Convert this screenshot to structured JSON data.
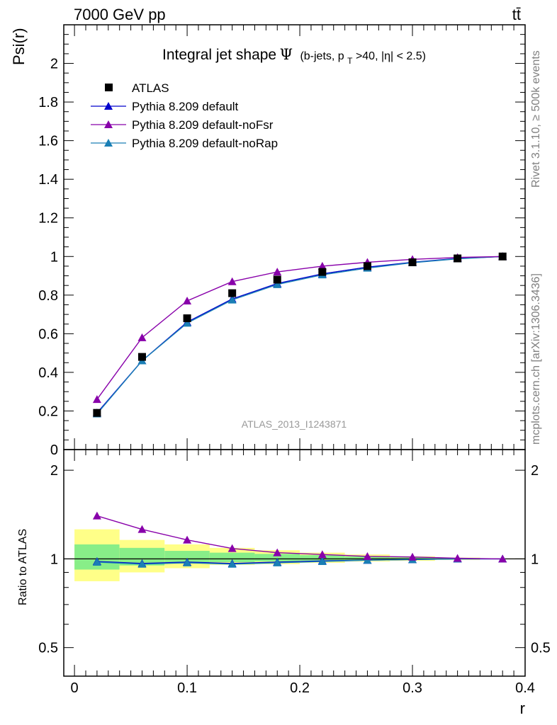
{
  "header": {
    "energy_label": "7000 GeV pp",
    "process_label": "tt̄"
  },
  "side_labels": {
    "rivet": "Rivet 3.1.10, ≥ 500k events",
    "mcplots": "mcplots.cern.ch [arXiv:1306.3436]"
  },
  "watermark": "ATLAS_2013_I1243871",
  "chart_data": [
    {
      "type": "line",
      "title_main": "Integral jet shape",
      "title_psi": "Ψ",
      "title_cut_a": "(b-jets, p",
      "title_cut_sub": "T",
      "title_cut_b": ">40, |η| < 2.5)",
      "xlabel": "r",
      "ylabel": "Psi(r)",
      "xlim": [
        -0.0095,
        0.4
      ],
      "ylim": [
        0,
        2.2
      ],
      "x_ticks": [
        "0",
        "0.1",
        "0.2",
        "0.3",
        "0.4"
      ],
      "y_ticks": [
        "0.2",
        "0.4",
        "0.6",
        "0.8",
        "1",
        "1.2",
        "1.4",
        "1.6",
        "1.8",
        "2"
      ],
      "y_zero_label": "0",
      "x": [
        0.02,
        0.06,
        0.1,
        0.14,
        0.18,
        0.22,
        0.26,
        0.3,
        0.34,
        0.38
      ],
      "series": [
        {
          "name": "ATLAS",
          "marker": "square",
          "color": "#000000",
          "values": [
            0.19,
            0.48,
            0.68,
            0.81,
            0.88,
            0.92,
            0.95,
            0.97,
            0.99,
            1.0
          ]
        },
        {
          "name": "Pythia 8.209 default",
          "marker": "triangle",
          "color": "#0000cc",
          "values": [
            0.19,
            0.46,
            0.66,
            0.78,
            0.86,
            0.91,
            0.945,
            0.97,
            0.99,
            1.0
          ]
        },
        {
          "name": "Pythia 8.209 default-noFsr",
          "marker": "triangle",
          "color": "#8800aa",
          "values": [
            0.26,
            0.58,
            0.77,
            0.87,
            0.92,
            0.95,
            0.97,
            0.985,
            0.995,
            1.0
          ]
        },
        {
          "name": "Pythia 8.209 default-noRap",
          "marker": "triangle",
          "color": "#1a7fb5",
          "values": [
            0.185,
            0.46,
            0.655,
            0.775,
            0.855,
            0.905,
            0.94,
            0.968,
            0.988,
            1.0
          ]
        }
      ]
    },
    {
      "type": "line",
      "ylabel": "Ratio to ATLAS",
      "xlabel": "r",
      "yscale": "log",
      "xlim": [
        -0.0095,
        0.4
      ],
      "ylim": [
        0.4,
        2.35
      ],
      "y_ticks": [
        "0.5",
        "1",
        "2"
      ],
      "x": [
        0.02,
        0.06,
        0.1,
        0.14,
        0.18,
        0.22,
        0.26,
        0.3,
        0.34,
        0.38
      ],
      "uncertainty_bins": [
        {
          "x_lo": 0.0,
          "x_hi": 0.04,
          "stat_lo": 0.92,
          "stat_hi": 1.12,
          "tot_lo": 0.84,
          "tot_hi": 1.26
        },
        {
          "x_lo": 0.04,
          "x_hi": 0.08,
          "stat_lo": 0.95,
          "stat_hi": 1.09,
          "tot_lo": 0.9,
          "tot_hi": 1.16
        },
        {
          "x_lo": 0.08,
          "x_hi": 0.12,
          "stat_lo": 0.965,
          "stat_hi": 1.065,
          "tot_lo": 0.93,
          "tot_hi": 1.12
        },
        {
          "x_lo": 0.12,
          "x_hi": 0.16,
          "stat_lo": 0.975,
          "stat_hi": 1.05,
          "tot_lo": 0.955,
          "tot_hi": 1.09
        },
        {
          "x_lo": 0.16,
          "x_hi": 0.2,
          "stat_lo": 0.98,
          "stat_hi": 1.04,
          "tot_lo": 0.96,
          "tot_hi": 1.07
        },
        {
          "x_lo": 0.2,
          "x_hi": 0.24,
          "stat_lo": 0.985,
          "stat_hi": 1.03,
          "tot_lo": 0.97,
          "tot_hi": 1.05
        },
        {
          "x_lo": 0.24,
          "x_hi": 0.28,
          "stat_lo": 0.99,
          "stat_hi": 1.02,
          "tot_lo": 0.98,
          "tot_hi": 1.035
        },
        {
          "x_lo": 0.28,
          "x_hi": 0.32,
          "stat_lo": 0.993,
          "stat_hi": 1.012,
          "tot_lo": 0.985,
          "tot_hi": 1.02
        },
        {
          "x_lo": 0.32,
          "x_hi": 0.36,
          "stat_lo": 0.996,
          "stat_hi": 1.006,
          "tot_lo": 0.992,
          "tot_hi": 1.01
        },
        {
          "x_lo": 0.36,
          "x_hi": 0.4,
          "stat_lo": 0.999,
          "stat_hi": 1.002,
          "tot_lo": 0.998,
          "tot_hi": 1.003
        }
      ],
      "stat_color": "#88ee88",
      "tot_color": "#ffff88",
      "series": [
        {
          "name": "Pythia 8.209 default",
          "color": "#0000cc",
          "values": [
            0.98,
            0.965,
            0.975,
            0.965,
            0.975,
            0.985,
            0.99,
            0.995,
            1.0,
            1.0
          ]
        },
        {
          "name": "Pythia 8.209 default-noFsr",
          "color": "#8800aa",
          "values": [
            1.4,
            1.26,
            1.16,
            1.085,
            1.05,
            1.035,
            1.02,
            1.015,
            1.005,
            1.0
          ]
        },
        {
          "name": "Pythia 8.209 default-noRap",
          "color": "#1a7fb5",
          "values": [
            0.975,
            0.96,
            0.97,
            0.96,
            0.97,
            0.98,
            0.99,
            0.995,
            1.0,
            1.0
          ]
        }
      ]
    }
  ]
}
